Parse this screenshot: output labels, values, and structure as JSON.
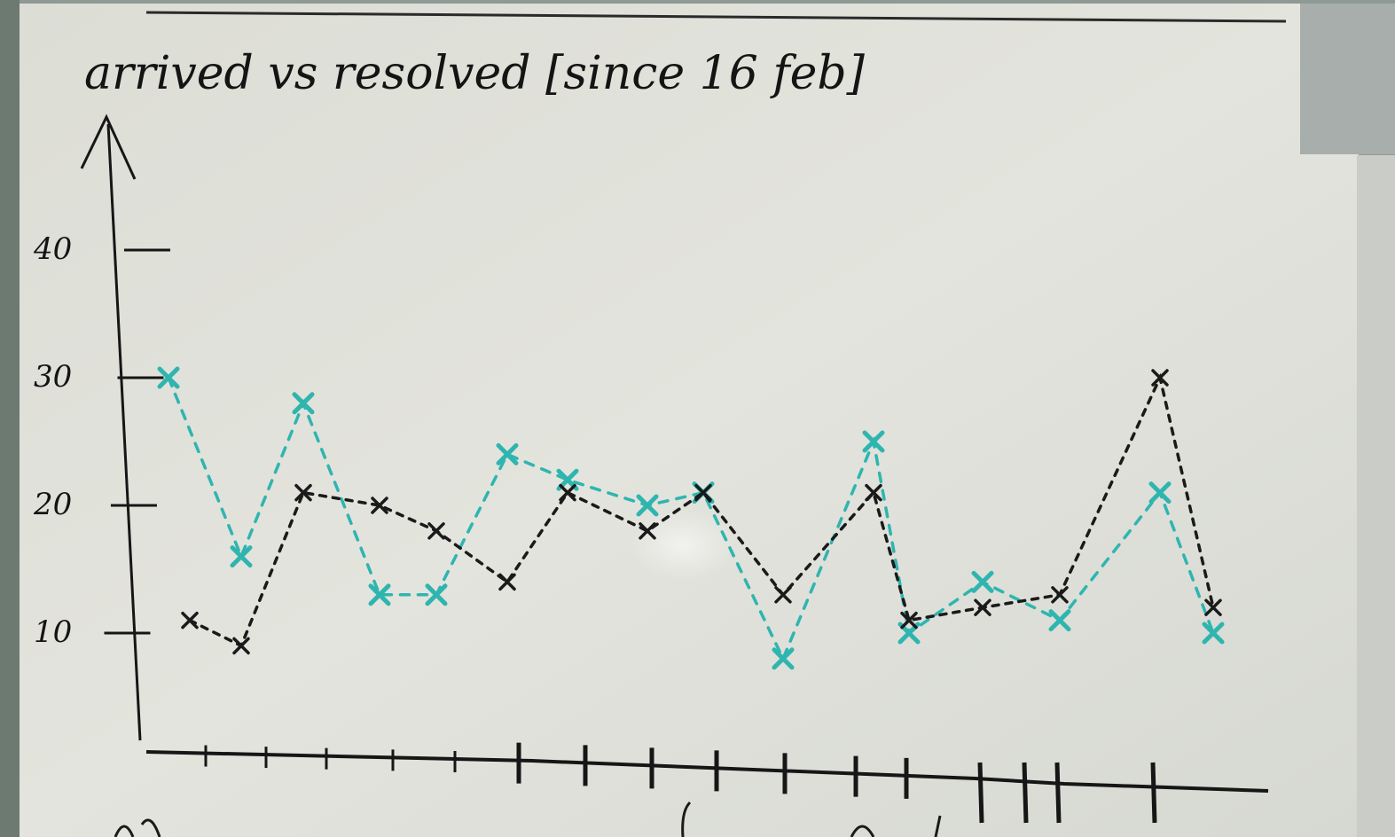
{
  "chart_data": {
    "type": "line",
    "title": "arrived vs resolved [since 16 feb]",
    "xlabel": "",
    "ylabel": "",
    "ylim": [
      0,
      45
    ],
    "yticks": [
      10,
      20,
      30,
      40
    ],
    "ytick_labels": [
      "10",
      "20",
      "30",
      "40"
    ],
    "grid": false,
    "x": [
      1,
      2,
      3,
      4,
      5,
      6,
      7,
      8,
      9,
      10,
      11,
      12,
      13,
      14,
      15,
      16
    ],
    "series": [
      {
        "color": "#2fb5b0",
        "dash": "10,10",
        "values": [
          30,
          16,
          28,
          13,
          13,
          24,
          22,
          20,
          21,
          8,
          25,
          10,
          14,
          11,
          21,
          10
        ]
      },
      {
        "color": "#1a1a1a",
        "dash": "7,8",
        "values": [
          11,
          9,
          21,
          20,
          18,
          14,
          21,
          18,
          21,
          13,
          21,
          11,
          12,
          13,
          30,
          12
        ]
      }
    ]
  }
}
